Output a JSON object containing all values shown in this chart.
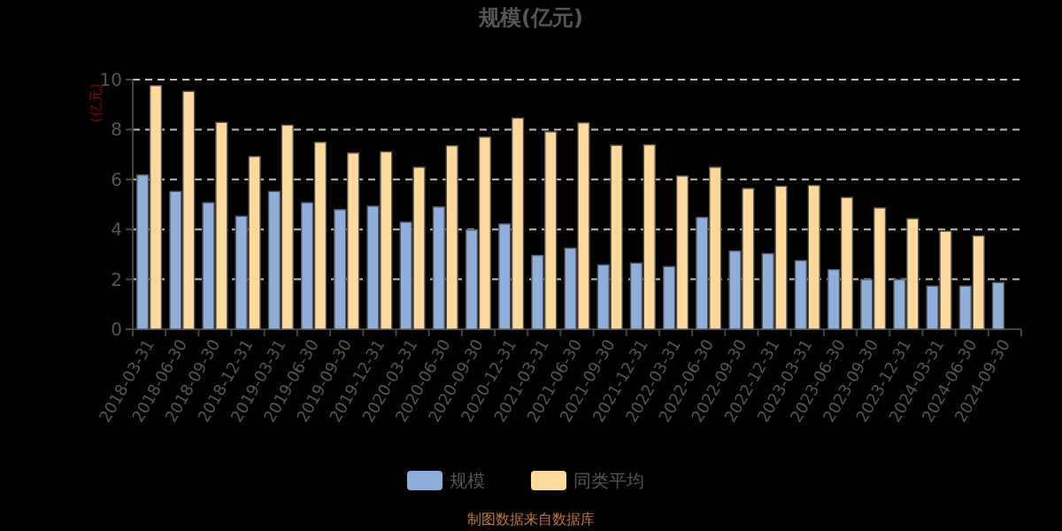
{
  "chart_data": {
    "type": "bar",
    "title": "规模(亿元)",
    "ylabel": "(亿元)",
    "annotations": [
      "制图数据来自数据库"
    ],
    "categories": [
      "2018-03-31",
      "2018-06-30",
      "2018-09-30",
      "2018-12-31",
      "2019-03-31",
      "2019-06-30",
      "2019-09-30",
      "2019-12-31",
      "2020-03-31",
      "2020-06-30",
      "2020-09-30",
      "2020-12-31",
      "2021-03-31",
      "2021-06-30",
      "2021-09-30",
      "2021-12-31",
      "2022-03-31",
      "2022-06-30",
      "2022-09-30",
      "2022-12-31",
      "2023-03-31",
      "2023-06-30",
      "2023-09-30",
      "2023-12-31",
      "2024-03-31",
      "2024-06-30",
      "2024-09-30"
    ],
    "series": [
      {
        "name": "规模",
        "color": "#8eaedc",
        "values": [
          6.18,
          5.52,
          5.07,
          4.53,
          5.52,
          5.07,
          4.79,
          4.93,
          4.29,
          4.9,
          3.98,
          4.22,
          2.96,
          3.25,
          2.58,
          2.65,
          2.51,
          4.48,
          3.13,
          3.03,
          2.75,
          2.39,
          1.99,
          1.99,
          1.73,
          1.73,
          1.87
        ]
      },
      {
        "name": "同类平均",
        "color": "#ffd99a",
        "values": [
          9.76,
          9.53,
          8.29,
          6.92,
          8.18,
          7.49,
          7.06,
          7.11,
          6.49,
          7.35,
          7.7,
          8.46,
          7.91,
          8.27,
          7.37,
          7.39,
          6.14,
          6.49,
          5.64,
          5.73,
          5.76,
          5.28,
          4.86,
          4.43,
          3.93,
          3.74,
          null
        ]
      }
    ],
    "ylim": [
      0,
      10
    ],
    "yticks": [
      0,
      2,
      4,
      6,
      8,
      10
    ],
    "grid": "y",
    "legend": "bottom"
  }
}
